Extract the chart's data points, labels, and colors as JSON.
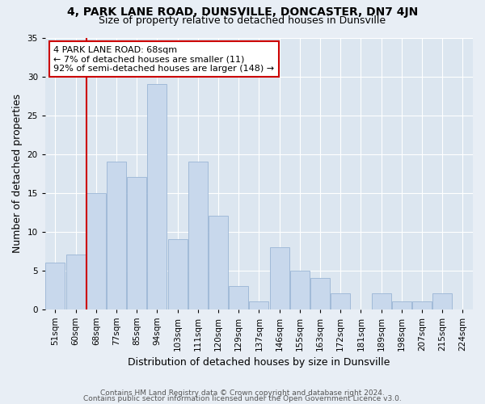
{
  "title1": "4, PARK LANE ROAD, DUNSVILLE, DONCASTER, DN7 4JN",
  "title2": "Size of property relative to detached houses in Dunsville",
  "xlabel": "Distribution of detached houses by size in Dunsville",
  "ylabel": "Number of detached properties",
  "footnote1": "Contains HM Land Registry data © Crown copyright and database right 2024.",
  "footnote2": "Contains public sector information licensed under the Open Government Licence v3.0.",
  "bar_labels": [
    "51sqm",
    "60sqm",
    "68sqm",
    "77sqm",
    "85sqm",
    "94sqm",
    "103sqm",
    "111sqm",
    "120sqm",
    "129sqm",
    "137sqm",
    "146sqm",
    "155sqm",
    "163sqm",
    "172sqm",
    "181sqm",
    "189sqm",
    "198sqm",
    "207sqm",
    "215sqm",
    "224sqm"
  ],
  "bar_values": [
    6,
    7,
    15,
    19,
    17,
    29,
    9,
    19,
    12,
    3,
    1,
    8,
    5,
    4,
    2,
    0,
    2,
    1,
    1,
    2,
    0
  ],
  "bar_color": "#c8d8ec",
  "bar_edge_color": "#9ab5d5",
  "annotation_line1": "4 PARK LANE ROAD: 68sqm",
  "annotation_line2": "← 7% of detached houses are smaller (11)",
  "annotation_line3": "92% of semi-detached houses are larger (148) →",
  "vline_bar_index": 2,
  "vline_color": "#cc0000",
  "box_edge_color": "#cc0000",
  "ylim": [
    0,
    35
  ],
  "yticks": [
    0,
    5,
    10,
    15,
    20,
    25,
    30,
    35
  ],
  "background_color": "#e8eef5",
  "plot_background": "#dce6f0",
  "grid_color": "#ffffff",
  "title1_fontsize": 10,
  "title2_fontsize": 9,
  "axis_label_fontsize": 9,
  "tick_fontsize": 7.5,
  "annotation_fontsize": 8,
  "footnote_fontsize": 6.5
}
